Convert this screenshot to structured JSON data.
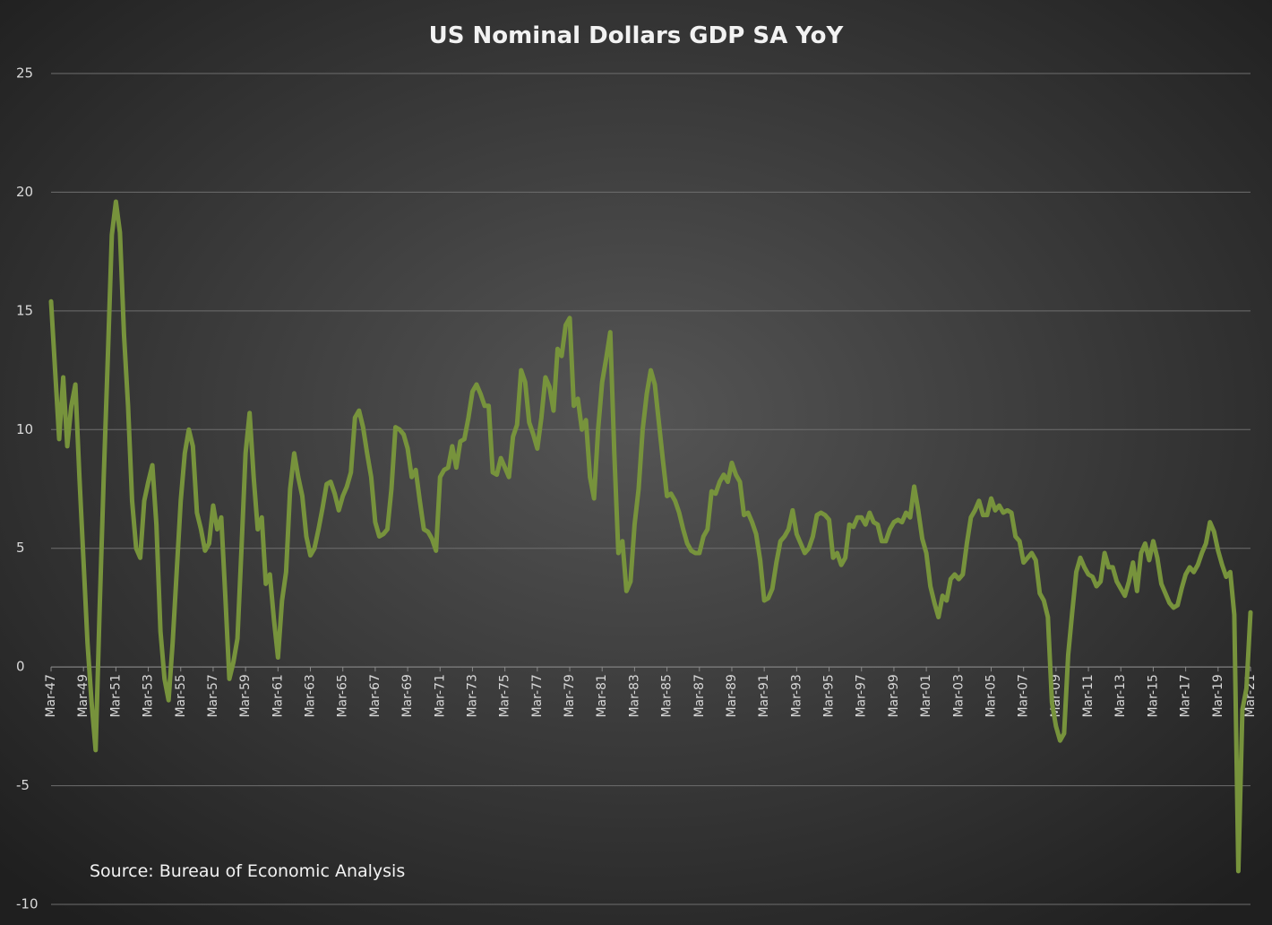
{
  "chart_data": {
    "type": "line",
    "title": "US Nominal Dollars GDP SA YoY",
    "annotation": "Source: Bureau of Economic Analysis",
    "ylim": [
      -10,
      25
    ],
    "yticks": [
      -10,
      -5,
      0,
      5,
      10,
      15,
      20,
      25
    ],
    "grid": true,
    "categories": [
      "Mar-47",
      null,
      null,
      null,
      null,
      null,
      null,
      null,
      "Mar-49",
      null,
      null,
      null,
      null,
      null,
      null,
      null,
      "Mar-51",
      null,
      null,
      null,
      null,
      null,
      null,
      null,
      "Mar-53",
      null,
      null,
      null,
      null,
      null,
      null,
      null,
      "Mar-55",
      null,
      null,
      null,
      null,
      null,
      null,
      null,
      "Mar-57",
      null,
      null,
      null,
      null,
      null,
      null,
      null,
      "Mar-59",
      null,
      null,
      null,
      null,
      null,
      null,
      null,
      "Mar-61",
      null,
      null,
      null,
      null,
      null,
      null,
      null,
      "Mar-63",
      null,
      null,
      null,
      null,
      null,
      null,
      null,
      "Mar-65",
      null,
      null,
      null,
      null,
      null,
      null,
      null,
      "Mar-67",
      null,
      null,
      null,
      null,
      null,
      null,
      null,
      "Mar-69",
      null,
      null,
      null,
      null,
      null,
      null,
      null,
      "Mar-71",
      null,
      null,
      null,
      null,
      null,
      null,
      null,
      "Mar-73",
      null,
      null,
      null,
      null,
      null,
      null,
      null,
      "Mar-75",
      null,
      null,
      null,
      null,
      null,
      null,
      null,
      "Mar-77",
      null,
      null,
      null,
      null,
      null,
      null,
      null,
      "Mar-79",
      null,
      null,
      null,
      null,
      null,
      null,
      null,
      "Mar-81",
      null,
      null,
      null,
      null,
      null,
      null,
      null,
      "Mar-83",
      null,
      null,
      null,
      null,
      null,
      null,
      null,
      "Mar-85",
      null,
      null,
      null,
      null,
      null,
      null,
      null,
      "Mar-87",
      null,
      null,
      null,
      null,
      null,
      null,
      null,
      "Mar-89",
      null,
      null,
      null,
      null,
      null,
      null,
      null,
      "Mar-91",
      null,
      null,
      null,
      null,
      null,
      null,
      null,
      "Mar-93",
      null,
      null,
      null,
      null,
      null,
      null,
      null,
      "Mar-95",
      null,
      null,
      null,
      null,
      null,
      null,
      null,
      "Mar-97",
      null,
      null,
      null,
      null,
      null,
      null,
      null,
      "Mar-99",
      null,
      null,
      null,
      null,
      null,
      null,
      null,
      "Mar-01",
      null,
      null,
      null,
      null,
      null,
      null,
      null,
      "Mar-03",
      null,
      null,
      null,
      null,
      null,
      null,
      null,
      "Mar-05",
      null,
      null,
      null,
      null,
      null,
      null,
      null,
      "Mar-07",
      null,
      null,
      null,
      null,
      null,
      null,
      null,
      "Mar-09",
      null,
      null,
      null,
      null,
      null,
      null,
      null,
      "Mar-11",
      null,
      null,
      null,
      null,
      null,
      null,
      null,
      "Mar-13",
      null,
      null,
      null,
      null,
      null,
      null,
      null,
      "Mar-15",
      null,
      null,
      null,
      null,
      null,
      null,
      null,
      "Mar-17",
      null,
      null,
      null,
      null,
      null,
      null,
      null,
      "Mar-19",
      null,
      null,
      null,
      null,
      null,
      null,
      null,
      "Mar-21"
    ],
    "series": [
      {
        "color": "#77933c",
        "values": [
          15.4,
          12.5,
          9.6,
          12.2,
          9.3,
          11.0,
          11.9,
          8.0,
          4.5,
          1.0,
          -1.5,
          -3.5,
          2.5,
          8.0,
          13.0,
          18.2,
          19.6,
          18.3,
          14.0,
          11.0,
          7.0,
          5.0,
          4.6,
          7.0,
          7.8,
          8.5,
          6.0,
          1.5,
          -0.5,
          -1.4,
          1.0,
          4.0,
          7.0,
          9.0,
          10.0,
          9.3,
          6.5,
          5.8,
          4.9,
          5.2,
          6.8,
          5.8,
          6.3,
          3.0,
          -0.5,
          0.2,
          1.2,
          5.0,
          9.0,
          10.7,
          8.0,
          5.8,
          6.3,
          3.5,
          3.9,
          2.0,
          0.4,
          2.8,
          4.0,
          7.5,
          9.0,
          8.0,
          7.2,
          5.5,
          4.7,
          5.0,
          5.8,
          6.7,
          7.7,
          7.8,
          7.3,
          6.6,
          7.2,
          7.6,
          8.2,
          10.5,
          10.8,
          10.1,
          9.0,
          8.0,
          6.1,
          5.5,
          5.6,
          5.8,
          7.5,
          10.1,
          10.0,
          9.8,
          9.2,
          8.0,
          8.3,
          7.0,
          5.8,
          5.7,
          5.4,
          4.9,
          8.0,
          8.3,
          8.4,
          9.3,
          8.4,
          9.5,
          9.6,
          10.5,
          11.6,
          11.9,
          11.5,
          11.0,
          11.0,
          8.2,
          8.1,
          8.8,
          8.4,
          8.0,
          9.7,
          10.2,
          12.5,
          12.0,
          10.3,
          9.8,
          9.2,
          10.5,
          12.2,
          11.8,
          10.8,
          13.4,
          13.1,
          14.4,
          14.7,
          11.0,
          11.3,
          10.0,
          10.4,
          8.0,
          7.1,
          10.0,
          12.0,
          13.0,
          14.1,
          9.0,
          4.8,
          5.3,
          3.2,
          3.6,
          6.0,
          7.5,
          10.0,
          11.5,
          12.5,
          11.9,
          10.3,
          8.7,
          7.2,
          7.3,
          7.0,
          6.5,
          5.8,
          5.2,
          4.9,
          4.8,
          4.8,
          5.5,
          5.8,
          7.4,
          7.3,
          7.8,
          8.1,
          7.8,
          8.6,
          8.1,
          7.8,
          6.4,
          6.5,
          6.1,
          5.6,
          4.5,
          2.8,
          2.9,
          3.3,
          4.4,
          5.3,
          5.5,
          5.8,
          6.6,
          5.6,
          5.2,
          4.8,
          5.0,
          5.5,
          6.4,
          6.5,
          6.4,
          6.2,
          4.6,
          4.8,
          4.3,
          4.6,
          6.0,
          5.9,
          6.3,
          6.3,
          6.0,
          6.5,
          6.1,
          6.0,
          5.3,
          5.3,
          5.8,
          6.1,
          6.2,
          6.1,
          6.5,
          6.3,
          7.6,
          6.6,
          5.4,
          4.8,
          3.4,
          2.7,
          2.1,
          3.0,
          2.8,
          3.7,
          3.9,
          3.7,
          3.9,
          5.2,
          6.3,
          6.6,
          7.0,
          6.4,
          6.4,
          7.1,
          6.6,
          6.8,
          6.5,
          6.6,
          6.5,
          5.5,
          5.3,
          4.4,
          4.6,
          4.8,
          4.5,
          3.1,
          2.8,
          2.1,
          -1.5,
          -2.5,
          -3.1,
          -2.8,
          0.5,
          2.3,
          4.0,
          4.6,
          4.2,
          3.9,
          3.8,
          3.4,
          3.6,
          4.8,
          4.2,
          4.2,
          3.6,
          3.3,
          3.0,
          3.6,
          4.4,
          3.2,
          4.8,
          5.2,
          4.5,
          5.3,
          4.6,
          3.5,
          3.1,
          2.7,
          2.5,
          2.6,
          3.3,
          3.9,
          4.2,
          4.0,
          4.3,
          4.8,
          5.2,
          6.1,
          5.7,
          4.9,
          4.3,
          3.8,
          4.0,
          2.2,
          -8.6,
          -1.8,
          -0.9,
          2.3
        ]
      }
    ]
  }
}
